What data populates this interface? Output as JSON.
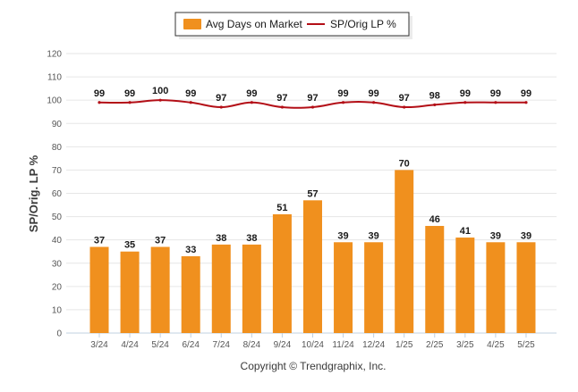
{
  "chart_data": {
    "type": "bar+line",
    "categories": [
      "3/24",
      "4/24",
      "5/24",
      "6/24",
      "7/24",
      "8/24",
      "9/24",
      "10/24",
      "11/24",
      "12/24",
      "1/25",
      "2/25",
      "3/25",
      "4/25",
      "5/25"
    ],
    "series": [
      {
        "name": "Avg Days on Market",
        "type": "bar",
        "values": [
          37,
          35,
          37,
          33,
          38,
          38,
          51,
          57,
          39,
          39,
          70,
          46,
          41,
          39,
          39
        ]
      },
      {
        "name": "SP/Orig LP %",
        "type": "line",
        "values": [
          99,
          99,
          100,
          99,
          97,
          99,
          97,
          97,
          99,
          99,
          97,
          98,
          99,
          99,
          99
        ]
      }
    ],
    "ylabel": "SP/Orig. LP %",
    "xlabel": "",
    "ylim": [
      0,
      120
    ],
    "yticks": [
      0,
      10,
      20,
      30,
      40,
      50,
      60,
      70,
      80,
      90,
      100,
      110,
      120
    ],
    "grid": true,
    "legend_position": "top-center",
    "colors": {
      "bar": "#F0901E",
      "line": "#B30E16",
      "grid": "#E6E6E6",
      "axis": "#C0D0E0"
    }
  },
  "footer": {
    "copyright": "Copyright © Trendgraphix, Inc."
  }
}
